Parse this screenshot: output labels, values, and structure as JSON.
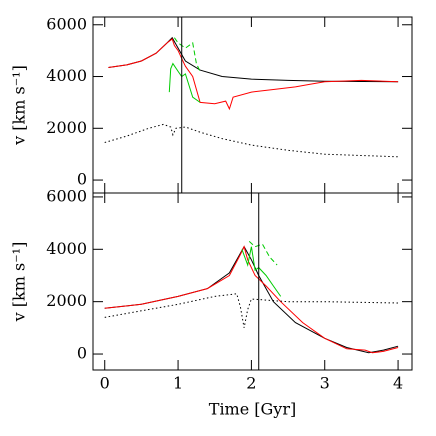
{
  "chart_data": [
    {
      "type": "line",
      "ylabel": "v [km s⁻¹]",
      "xlim": [
        -0.16,
        4.19
      ],
      "ylim": [
        -500,
        6300
      ],
      "xticks": [
        0,
        1,
        2,
        3,
        4
      ],
      "yticks": [
        0,
        2000,
        4000,
        6000
      ],
      "vline": 1.05,
      "series": [
        {
          "color": "#000000",
          "style": "solid",
          "x": [
            0.05,
            0.3,
            0.5,
            0.7,
            0.85,
            0.92,
            1.0,
            1.1,
            1.3,
            1.6,
            2.0,
            2.5,
            3.0,
            4.0
          ],
          "values": [
            4350,
            4450,
            4600,
            4900,
            5300,
            5500,
            5100,
            4600,
            4250,
            4000,
            3900,
            3850,
            3820,
            3800
          ]
        },
        {
          "color": "#ff0000",
          "style": "solid",
          "x": [
            0.05,
            0.3,
            0.5,
            0.7,
            0.85,
            0.92,
            0.95,
            1.0,
            1.05,
            1.1,
            1.2,
            1.3,
            1.5,
            1.65,
            1.7,
            1.75,
            2.0,
            2.3,
            2.6,
            2.8,
            3.0,
            3.5,
            4.0
          ],
          "values": [
            4350,
            4450,
            4600,
            4900,
            5300,
            5450,
            5200,
            5000,
            4700,
            4400,
            4000,
            3000,
            2950,
            3050,
            2750,
            3200,
            3400,
            3500,
            3600,
            3700,
            3800,
            3850,
            3800
          ]
        },
        {
          "color": "#00cc00",
          "style": "solid",
          "x": [
            0.88,
            0.9,
            0.93,
            1.0,
            1.05,
            1.1,
            1.2,
            1.3
          ],
          "values": [
            3400,
            4300,
            4500,
            4200,
            4000,
            4100,
            3200,
            3000
          ]
        },
        {
          "color": "#00cc00",
          "style": "dashed",
          "x": [
            0.95,
            1.0,
            1.1,
            1.2,
            1.25,
            1.3
          ],
          "values": [
            5500,
            5300,
            5100,
            5300,
            4500,
            4200
          ]
        },
        {
          "color": "#000000",
          "style": "dotted",
          "x": [
            0,
            0.3,
            0.6,
            0.8,
            0.9,
            0.93,
            0.97,
            1.1,
            1.3,
            1.6,
            2.0,
            2.5,
            3.0,
            3.5,
            4.0
          ],
          "values": [
            1450,
            1700,
            2000,
            2150,
            2050,
            1750,
            2000,
            2050,
            1850,
            1600,
            1350,
            1150,
            1000,
            950,
            900
          ]
        }
      ]
    },
    {
      "type": "line",
      "ylabel": "v [km s⁻¹]",
      "xlabel": "Time [Gyr]",
      "xlim": [
        -0.16,
        4.19
      ],
      "ylim": [
        -610,
        6150
      ],
      "xticks": [
        0,
        1,
        2,
        3,
        4
      ],
      "yticks": [
        0,
        2000,
        4000,
        6000
      ],
      "vline": 2.1,
      "series": [
        {
          "color": "#000000",
          "style": "solid",
          "x": [
            0,
            0.5,
            1.0,
            1.4,
            1.7,
            1.9,
            2.0,
            2.1,
            2.3,
            2.6,
            3.0,
            3.3,
            3.6,
            3.8,
            4.0
          ],
          "values": [
            1750,
            1900,
            2200,
            2500,
            3100,
            4100,
            3600,
            3000,
            2000,
            1200,
            600,
            250,
            50,
            150,
            300
          ]
        },
        {
          "color": "#ff0000",
          "style": "solid",
          "x": [
            0,
            0.5,
            1.0,
            1.4,
            1.7,
            1.85,
            1.9,
            1.95,
            2.05,
            2.2,
            2.4,
            2.7,
            3.0,
            3.3,
            3.55,
            3.65,
            3.8,
            4.0
          ],
          "values": [
            1750,
            1900,
            2200,
            2500,
            3000,
            3800,
            4100,
            3600,
            3000,
            2600,
            2000,
            1200,
            600,
            200,
            150,
            50,
            100,
            250
          ]
        },
        {
          "color": "#00cc00",
          "style": "solid",
          "x": [
            1.87,
            1.95,
            2.0,
            2.05,
            2.1,
            2.2,
            2.3,
            2.4
          ],
          "values": [
            4000,
            3400,
            4100,
            3200,
            3300,
            3000,
            2600,
            2200
          ]
        },
        {
          "color": "#00cc00",
          "style": "dashed",
          "x": [
            1.97,
            2.05,
            2.15,
            2.25,
            2.35
          ],
          "values": [
            4300,
            4100,
            4200,
            3700,
            3400
          ]
        },
        {
          "color": "#000000",
          "style": "dotted",
          "x": [
            0,
            0.5,
            1.0,
            1.5,
            1.8,
            1.85,
            1.9,
            1.95,
            2.0,
            2.5,
            3.0,
            4.0
          ],
          "values": [
            1400,
            1650,
            1900,
            2200,
            2300,
            1800,
            1000,
            1700,
            2100,
            2000,
            2000,
            1950
          ]
        }
      ]
    }
  ]
}
